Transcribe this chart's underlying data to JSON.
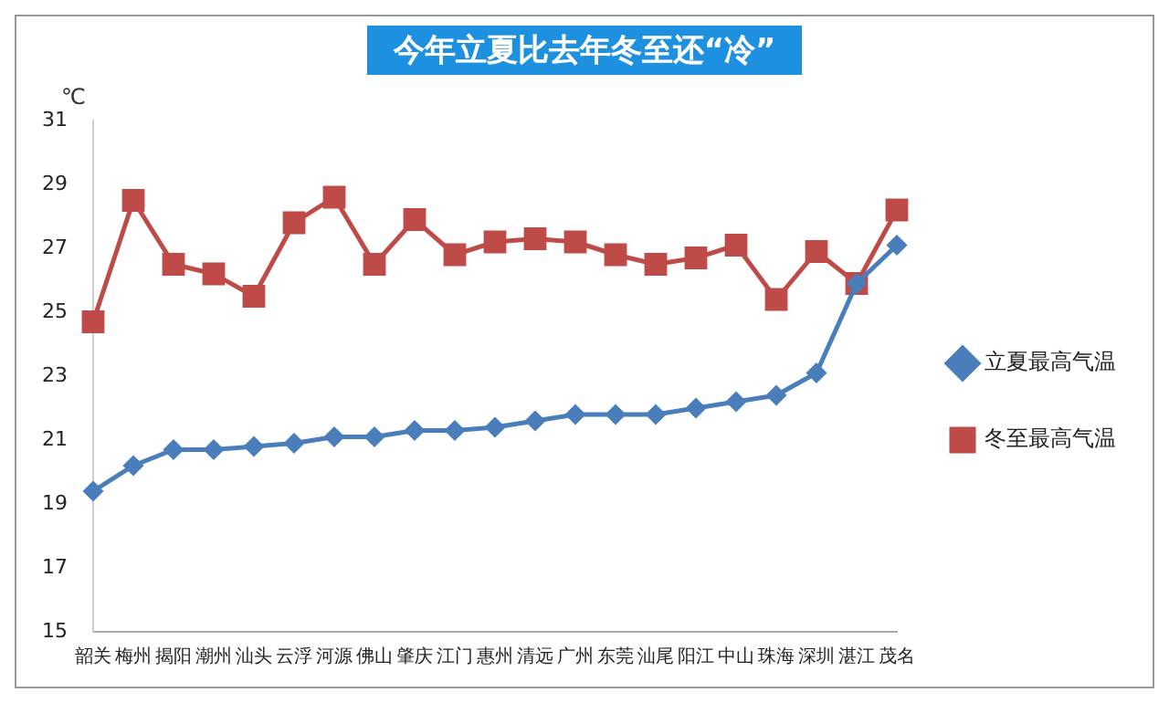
{
  "chart_data": {
    "type": "line",
    "title": "今年立夏比去年冬至还“冷”",
    "ylabel": "℃",
    "categories": [
      "韶关",
      "梅州",
      "揭阳",
      "潮州",
      "汕头",
      "云浮",
      "河源",
      "佛山",
      "肇庆",
      "江门",
      "惠州",
      "清远",
      "广州",
      "东莞",
      "汕尾",
      "阳江",
      "中山",
      "珠海",
      "深圳",
      "湛江",
      "茂名"
    ],
    "series": [
      {
        "name": "立夏最高气温",
        "color": "#4a7ebb",
        "marker": "diamond",
        "values": [
          19.4,
          20.2,
          20.7,
          20.7,
          20.8,
          20.9,
          21.1,
          21.1,
          21.3,
          21.3,
          21.4,
          21.6,
          21.8,
          21.8,
          21.8,
          22.0,
          22.2,
          22.4,
          23.1,
          25.9,
          27.1
        ]
      },
      {
        "name": "冬至最高气温",
        "color": "#be4b48",
        "marker": "square",
        "values": [
          24.7,
          28.5,
          26.5,
          26.2,
          25.5,
          27.8,
          28.6,
          26.5,
          27.9,
          26.8,
          27.2,
          27.3,
          27.2,
          26.8,
          26.5,
          26.7,
          27.1,
          25.4,
          26.9,
          25.9,
          28.2
        ]
      }
    ],
    "ylim": [
      15,
      31
    ],
    "yticks": [
      15,
      17,
      19,
      21,
      23,
      25,
      27,
      29,
      31
    ],
    "grid": false,
    "legend": "right",
    "line_style": "solid"
  }
}
